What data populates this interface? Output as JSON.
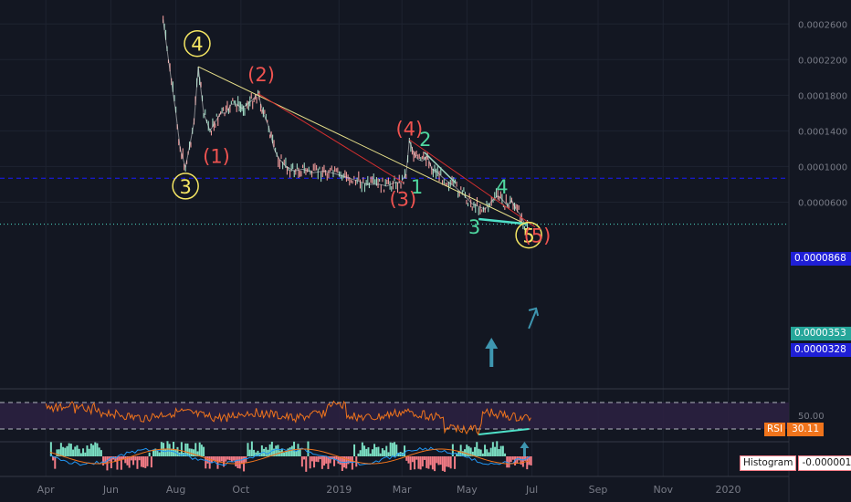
{
  "colors": {
    "background": "#131722",
    "grid": "#1e2330",
    "candle_up": "#9fd8c2",
    "candle_down": "#ef9a9a",
    "trend_yellow": "#e8e08a",
    "trend_red": "#d32f2f",
    "wave_yellow": "#f5e663",
    "wave_red": "#ef5350",
    "wave_green": "#4fd8a0",
    "blue_line": "#1a1aff",
    "blue_tag": "#1f1fd6",
    "cyan": "#4fe0c8",
    "arrow": "#3e96b0",
    "rsi": "#f0741c",
    "rsi_band": "#2b2040",
    "hist_up": "#7be0c4",
    "hist_down": "#f47c86"
  },
  "chart_data": [
    {
      "type": "line",
      "name": "price",
      "x_axis": [
        "Apr",
        "Jun",
        "Aug",
        "Oct",
        "2019",
        "Mar",
        "May",
        "Jul",
        "Sep",
        "Nov",
        "2020"
      ],
      "y_ticks": [
        "0.0002600",
        "0.0002200",
        "0.0001800",
        "0.0001400",
        "0.0001000",
        "0.0000600"
      ],
      "ylim": [
        1.2e-05,
        0.00026
      ],
      "x": [
        "2018-07-20",
        "2018-07-25",
        "2018-08-01",
        "2018-08-05",
        "2018-08-10",
        "2018-08-15",
        "2018-08-18",
        "2018-08-22",
        "2018-08-27",
        "2018-09-02",
        "2018-09-07",
        "2018-09-12",
        "2018-09-17",
        "2018-09-22",
        "2018-09-27",
        "2018-10-02",
        "2018-10-07",
        "2018-10-12",
        "2018-10-17",
        "2018-10-22",
        "2018-10-27",
        "2018-11-01",
        "2018-11-05",
        "2018-11-12",
        "2018-11-20",
        "2018-11-28",
        "2018-12-08",
        "2018-12-18",
        "2018-12-28",
        "2019-01-08",
        "2019-01-18",
        "2019-01-28",
        "2019-02-08",
        "2019-02-15",
        "2019-02-22",
        "2019-02-28",
        "2019-03-05",
        "2019-03-08",
        "2019-03-12",
        "2019-03-16",
        "2019-03-20",
        "2019-03-25",
        "2019-03-29",
        "2019-04-02",
        "2019-04-08",
        "2019-04-14",
        "2019-04-20",
        "2019-04-28",
        "2019-05-06",
        "2019-05-12",
        "2019-05-18",
        "2019-05-24",
        "2019-05-30",
        "2019-06-03",
        "2019-06-08",
        "2019-06-12",
        "2019-06-16",
        "2019-06-20",
        "2019-06-24",
        "2019-06-28"
      ],
      "y": [
        0.000265,
        0.00022,
        0.00016,
        0.00012,
        9.9e-05,
        0.00013,
        0.00015,
        0.000212,
        0.00016,
        0.00014,
        0.00015,
        0.00016,
        0.00016,
        0.00017,
        0.00017,
        0.000165,
        0.00017,
        0.000175,
        0.000182,
        0.00016,
        0.000145,
        0.00012,
        0.00011,
        0.0001,
        9.5e-05,
        9.7e-05,
        9.3e-05,
        9.5e-05,
        9.2e-05,
        8.8e-05,
        8.4e-05,
        8e-05,
        8e-05,
        7.8e-05,
        8.2e-05,
        8.2e-05,
        9.2e-05,
        0.00013,
        0.000115,
        0.000108,
        0.000106,
        0.000112,
        9.7e-05,
        9.5e-05,
        8.8e-05,
        8.2e-05,
        7.7e-05,
        6.8e-05,
        5.8e-05,
        5.5e-05,
        5.2e-05,
        6.1e-05,
        6.7e-05,
        6.3e-05,
        5.6e-05,
        6.2e-05,
        5.2e-05,
        4.6e-05,
        3.6e-05,
        3.8e-05
      ],
      "trendlines": [
        {
          "color": "trend_yellow",
          "from": [
            "2018-08-22",
            0.000212
          ],
          "to": [
            "2019-06-24",
            3.6e-05
          ]
        },
        {
          "color": "trend_red",
          "from": [
            "2018-10-17",
            0.000182
          ],
          "to": [
            "2019-03-02",
            8.2e-05
          ]
        },
        {
          "color": "trend_red",
          "from": [
            "2019-03-08",
            0.00013
          ],
          "to": [
            "2019-07-04",
            3.2e-05
          ]
        }
      ],
      "hlines": [
        {
          "value": 8.68e-05,
          "color": "blue_line",
          "style": "dashed",
          "label": "0.0000868"
        },
        {
          "value": 3.53e-05,
          "color": "cyan",
          "style": "dotted",
          "label": "0.0000353"
        },
        {
          "value": 3.28e-05,
          "label": "0.0000328"
        }
      ],
      "annotations": [
        {
          "text": "4",
          "at": [
            "2018-08-21",
            0.000238
          ],
          "color": "wave_yellow",
          "circle": true
        },
        {
          "text": "3",
          "at": [
            "2018-08-10",
            7.8e-05
          ],
          "color": "wave_yellow",
          "circle": true
        },
        {
          "text": "(2)",
          "at": [
            "2018-10-20",
            0.000204
          ],
          "color": "wave_red"
        },
        {
          "text": "(1)",
          "at": [
            "2018-09-08",
            0.000112
          ],
          "color": "wave_red"
        },
        {
          "text": "(4)",
          "at": [
            "2019-03-08",
            0.000143
          ],
          "color": "wave_red"
        },
        {
          "text": "(3)",
          "at": [
            "2019-03-02",
            6.4e-05
          ],
          "color": "wave_red"
        },
        {
          "text": "2",
          "at": [
            "2019-03-23",
            0.000131
          ],
          "color": "wave_green"
        },
        {
          "text": "1",
          "at": [
            "2019-03-15",
            7.8e-05
          ],
          "color": "wave_green"
        },
        {
          "text": "4",
          "at": [
            "2019-06-03",
            7.8e-05
          ],
          "color": "wave_green"
        },
        {
          "text": "3",
          "at": [
            "2019-05-08",
            3.3e-05
          ],
          "color": "wave_green"
        },
        {
          "text": "5",
          "at": [
            "2019-06-28",
            2.3e-05
          ],
          "color": "wave_yellow",
          "circle": true
        },
        {
          "text": "(5)",
          "at": [
            "2019-07-06",
            2.3e-05
          ],
          "color": "wave_red"
        }
      ]
    },
    {
      "type": "line",
      "name": "RSI",
      "value": 30.11,
      "y_ticks": [
        "50.00"
      ]
    },
    {
      "type": "bar",
      "name": "Histogram",
      "value": -1.8e-06
    }
  ],
  "price_tags": {
    "blue_level": "0.0000868",
    "current": "0.0000353",
    "low": "0.0000328"
  },
  "rsi_label": "RSI",
  "rsi_value": "30.11",
  "hist_label": "Histogram",
  "hist_value": "-0.0000018"
}
